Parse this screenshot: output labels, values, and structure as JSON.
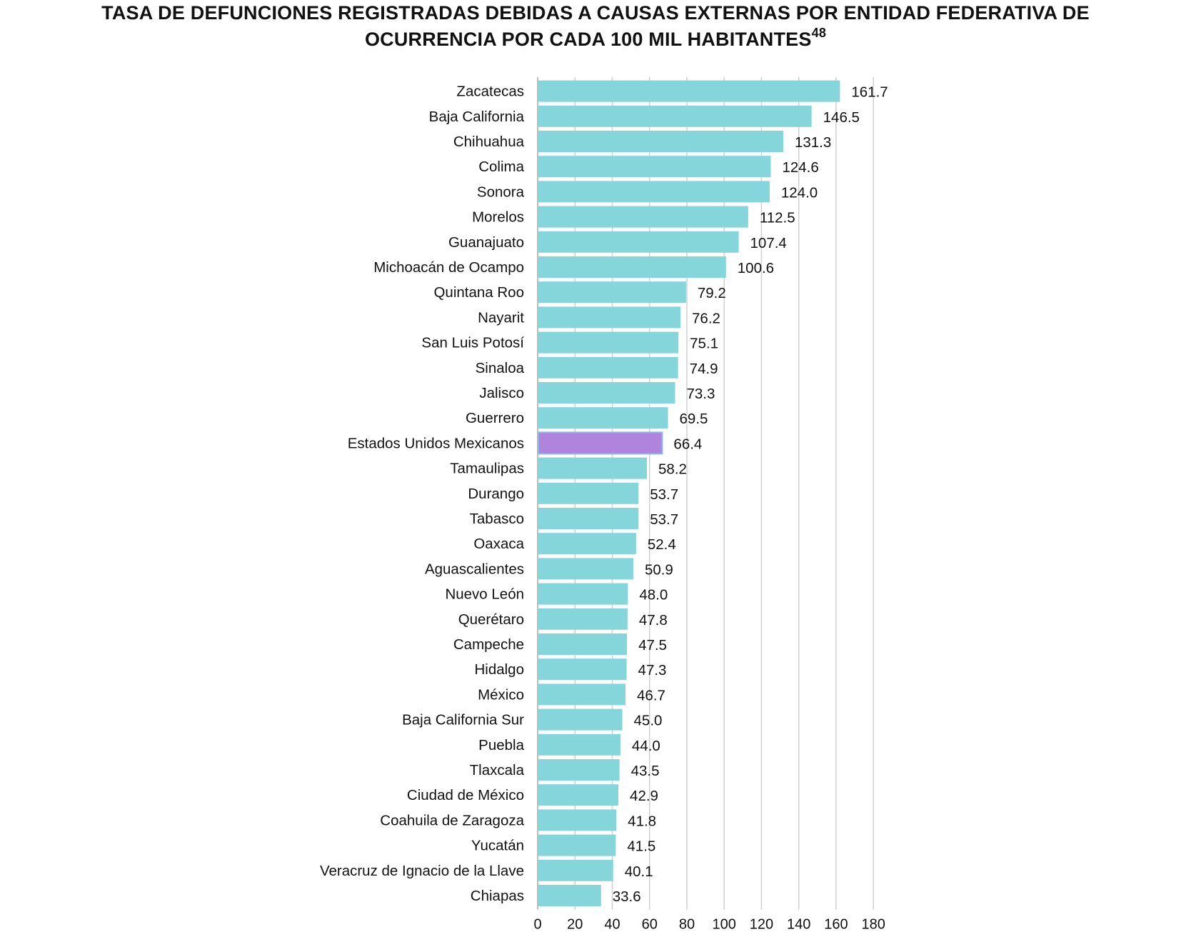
{
  "title": {
    "line1": "Tasa de defunciones registradas debidas a causas externas por entidad federativa de",
    "line2": "ocurrencia por cada 100 mil habitantes",
    "footnote": "48"
  },
  "colors": {
    "bar": "#84d6da",
    "highlight": "#b083dd",
    "highlight_border": "#8fb4f0",
    "grid": "#d0d0d0",
    "axis": "#bdbdbd",
    "text": "#111111"
  },
  "chart_data": {
    "type": "bar",
    "orientation": "horizontal",
    "categories": [
      "Zacatecas",
      "Baja California",
      "Chihuahua",
      "Colima",
      "Sonora",
      "Morelos",
      "Guanajuato",
      "Michoacán de Ocampo",
      "Quintana Roo",
      "Nayarit",
      "San Luis Potosí",
      "Sinaloa",
      "Jalisco",
      "Guerrero",
      "Estados Unidos Mexicanos",
      "Tamaulipas",
      "Durango",
      "Tabasco",
      "Oaxaca",
      "Aguascalientes",
      "Nuevo León",
      "Querétaro",
      "Campeche",
      "Hidalgo",
      "México",
      "Baja California Sur",
      "Puebla",
      "Tlaxcala",
      "Ciudad de México",
      "Coahuila de Zaragoza",
      "Yucatán",
      "Veracruz de Ignacio de la Llave",
      "Chiapas"
    ],
    "values": [
      161.7,
      146.5,
      131.3,
      124.6,
      124.0,
      112.5,
      107.4,
      100.6,
      79.2,
      76.2,
      75.1,
      74.9,
      73.3,
      69.5,
      66.4,
      58.2,
      53.7,
      53.7,
      52.4,
      50.9,
      48.0,
      47.8,
      47.5,
      47.3,
      46.7,
      45.0,
      44.0,
      43.5,
      42.9,
      41.8,
      41.5,
      40.1,
      33.6
    ],
    "labels": [
      "161.7",
      "146.5",
      "131.3",
      "124.6",
      "124.0",
      "112.5",
      "107.4",
      "100.6",
      "79.2",
      "76.2",
      "75.1",
      "74.9",
      "73.3",
      "69.5",
      "66.4",
      "58.2",
      "53.7",
      "53.7",
      "52.4",
      "50.9",
      "48.0",
      "47.8",
      "47.5",
      "47.3",
      "46.7",
      "45.0",
      "44.0",
      "43.5",
      "42.9",
      "41.8",
      "41.5",
      "40.1",
      "33.6"
    ],
    "highlight_category": "Estados Unidos Mexicanos",
    "xlim": [
      0,
      180
    ],
    "xticks": [
      0,
      20,
      40,
      60,
      80,
      100,
      120,
      140,
      160,
      180
    ],
    "grid": true,
    "xlabel": "",
    "ylabel": ""
  }
}
